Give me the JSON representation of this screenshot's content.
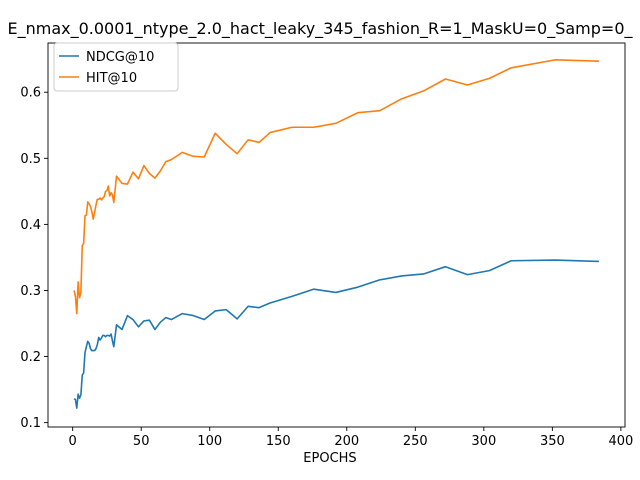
{
  "chart_data": {
    "type": "line",
    "title": "E_nmax_0.0001_ntype_2.0_hact_leaky_345_fashion_R=1_MaskU=0_Samp=0_",
    "xlabel": "EPOCHS",
    "ylabel": "",
    "xlim": [
      -18,
      403
    ],
    "ylim": [
      0.0934,
      0.6745
    ],
    "xticks": [
      0,
      50,
      100,
      150,
      200,
      250,
      300,
      350,
      400
    ],
    "yticks": [
      0.1,
      0.2,
      0.3,
      0.4,
      0.5,
      0.6
    ],
    "grid": false,
    "legend_position": "top-left",
    "series": [
      {
        "name": "NDCG@10",
        "color": "#1f77b4",
        "x": [
          1,
          2,
          3,
          4,
          5,
          6,
          7,
          8,
          9,
          10,
          11,
          12,
          13,
          14,
          15,
          16,
          17,
          18,
          19,
          20,
          21,
          22,
          23,
          24,
          25,
          26,
          27,
          28,
          29,
          30,
          32,
          36,
          40,
          44,
          48,
          52,
          56,
          60,
          64,
          68,
          72,
          80,
          88,
          96,
          104,
          112,
          120,
          128,
          136,
          144,
          160,
          176,
          192,
          208,
          224,
          240,
          256,
          272,
          288,
          304,
          320,
          352,
          384
        ],
        "y": [
          0.136,
          0.135,
          0.122,
          0.143,
          0.137,
          0.142,
          0.172,
          0.175,
          0.206,
          0.215,
          0.223,
          0.22,
          0.212,
          0.209,
          0.209,
          0.209,
          0.212,
          0.218,
          0.229,
          0.225,
          0.228,
          0.232,
          0.232,
          0.23,
          0.232,
          0.232,
          0.231,
          0.234,
          0.224,
          0.215,
          0.248,
          0.241,
          0.262,
          0.256,
          0.245,
          0.254,
          0.255,
          0.241,
          0.252,
          0.259,
          0.256,
          0.265,
          0.262,
          0.256,
          0.269,
          0.271,
          0.257,
          0.276,
          0.274,
          0.281,
          0.291,
          0.302,
          0.297,
          0.305,
          0.316,
          0.322,
          0.325,
          0.336,
          0.324,
          0.33,
          0.345,
          0.346,
          0.344
        ]
      },
      {
        "name": "HIT@10",
        "color": "#ff7f0e",
        "x": [
          1,
          2,
          3,
          4,
          5,
          6,
          7,
          8,
          9,
          10,
          11,
          12,
          13,
          14,
          15,
          16,
          17,
          18,
          19,
          20,
          21,
          22,
          23,
          24,
          25,
          26,
          27,
          28,
          29,
          30,
          32,
          36,
          40,
          44,
          48,
          52,
          56,
          60,
          64,
          68,
          72,
          80,
          88,
          96,
          104,
          112,
          120,
          128,
          136,
          144,
          160,
          176,
          192,
          208,
          224,
          240,
          256,
          272,
          288,
          304,
          320,
          352,
          384
        ],
        "y": [
          0.3,
          0.291,
          0.265,
          0.313,
          0.289,
          0.297,
          0.368,
          0.371,
          0.413,
          0.414,
          0.434,
          0.431,
          0.427,
          0.419,
          0.408,
          0.418,
          0.429,
          0.438,
          0.438,
          0.44,
          0.437,
          0.44,
          0.442,
          0.45,
          0.451,
          0.458,
          0.443,
          0.448,
          0.445,
          0.433,
          0.473,
          0.462,
          0.461,
          0.479,
          0.469,
          0.489,
          0.477,
          0.47,
          0.481,
          0.495,
          0.498,
          0.509,
          0.503,
          0.502,
          0.538,
          0.521,
          0.507,
          0.528,
          0.524,
          0.539,
          0.547,
          0.547,
          0.553,
          0.569,
          0.572,
          0.59,
          0.602,
          0.62,
          0.611,
          0.621,
          0.637,
          0.649,
          0.647
        ]
      }
    ]
  }
}
